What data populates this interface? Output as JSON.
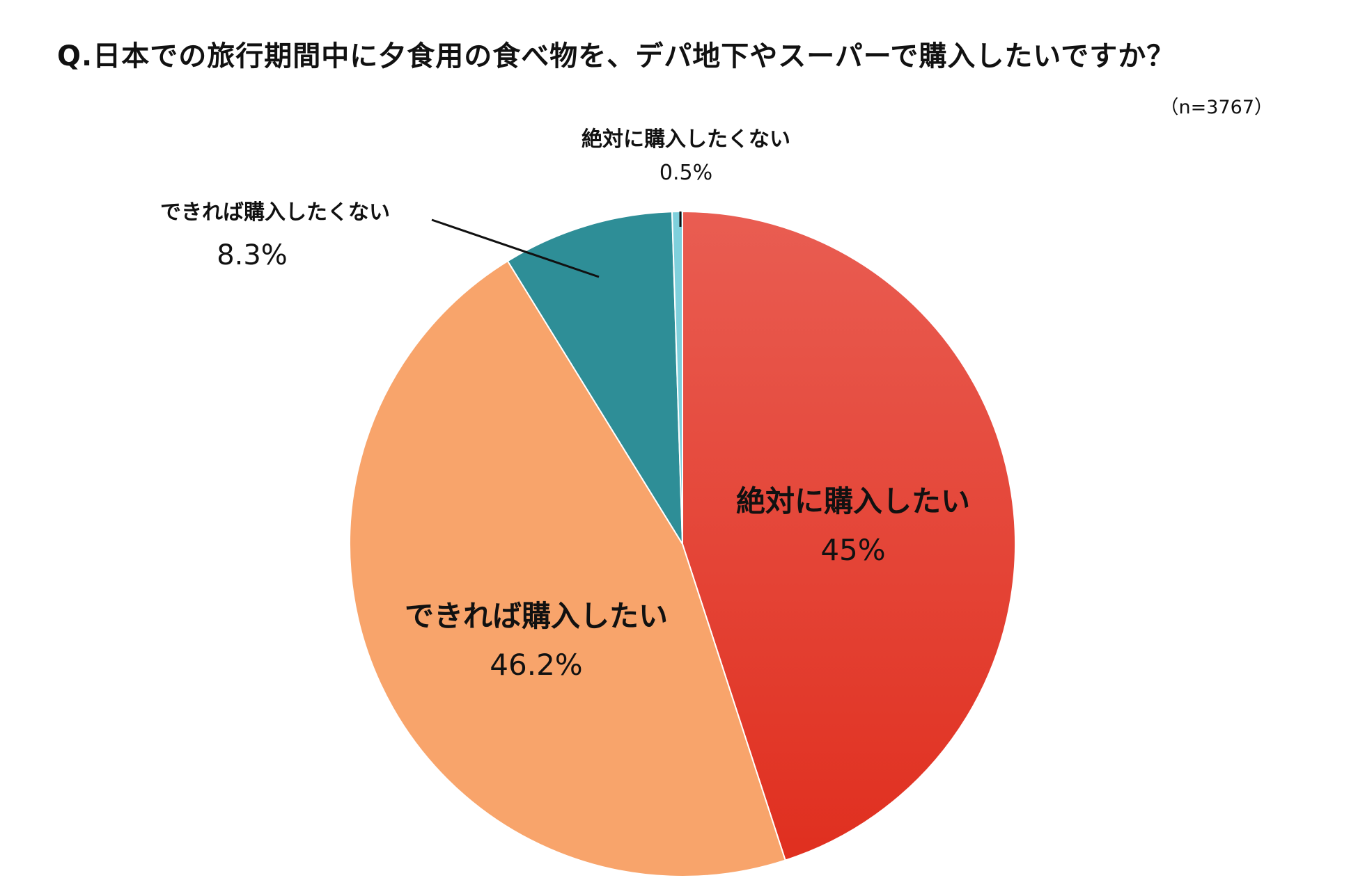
{
  "title": "Q.日本での旅行期間中に夕食用の食べ物を、デパ地下やスーパーで購入したいですか？",
  "sample_size": "（n=3767）",
  "chart_data": {
    "type": "pie",
    "start_angle_deg": 0,
    "direction": "clockwise",
    "slices": [
      {
        "label": "絶対に購入したい",
        "value": 45,
        "value_text": "45%",
        "color": "#e8392b"
      },
      {
        "label": "できれば購入したい",
        "value": 46.2,
        "value_text": "46.2%",
        "color": "#f8a46b"
      },
      {
        "label": "できれば購入したくない",
        "value": 8.3,
        "value_text": "8.3%",
        "color": "#2e8e97"
      },
      {
        "label": "絶対に購入したくない",
        "value": 0.5,
        "value_text": "0.5%",
        "color": "#7fd0dc"
      }
    ]
  }
}
